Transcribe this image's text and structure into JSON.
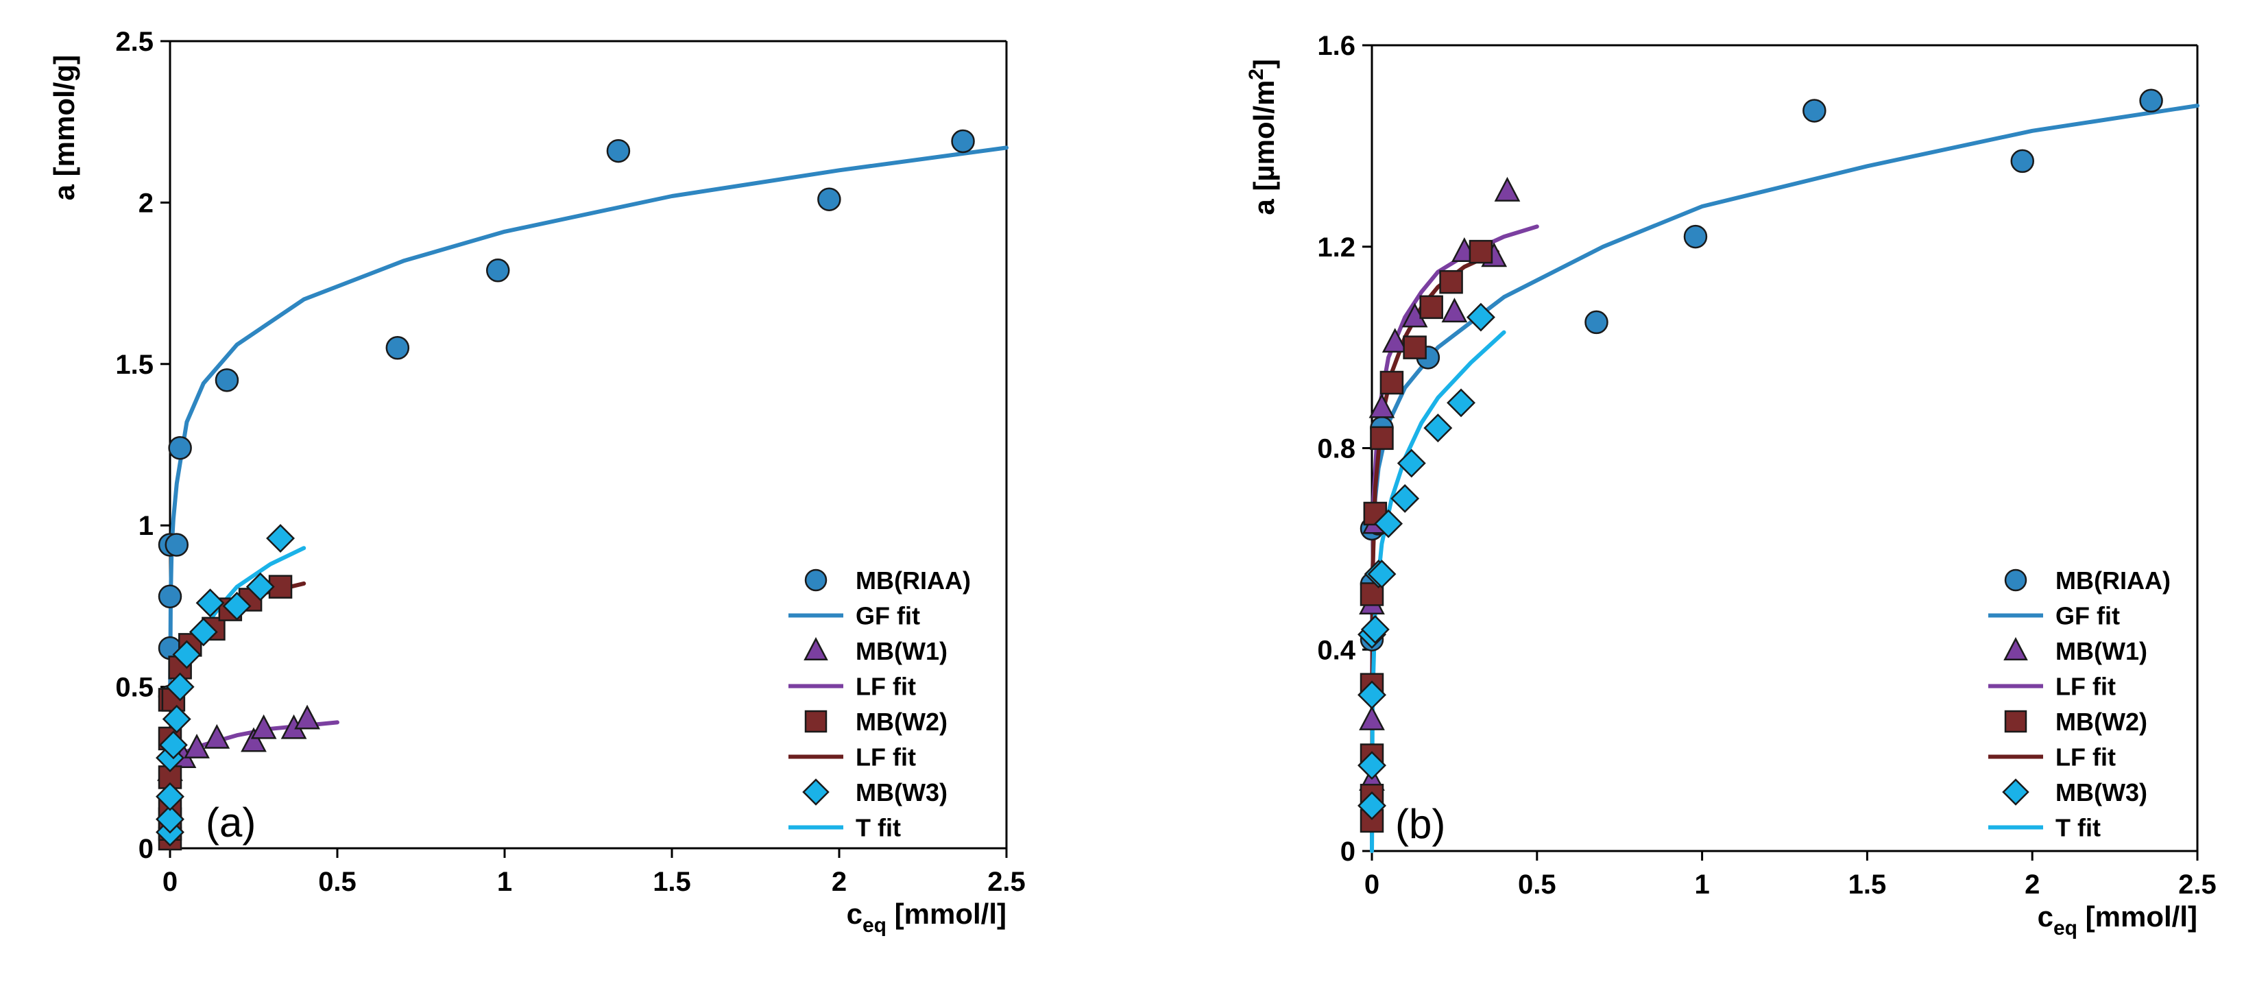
{
  "colors": {
    "riaa": "#2e86c1",
    "gf_fit": "#2e86c1",
    "w1": "#7b3fa0",
    "lf_fit_w1": "#7b3fa0",
    "w2": "#7b2a2a",
    "lf_fit_w2": "#6b1f1f",
    "w3": "#1ab2e8",
    "t_fit": "#1ab2e8",
    "marker_edge": "#1a1a1a",
    "axis": "#000000"
  },
  "chart_data": [
    {
      "type": "scatter",
      "panel_label": "(a)",
      "xlabel": {
        "main": "c",
        "sub": "eq",
        "rest": " [mmol/l]"
      },
      "ylabel": {
        "main": "a [mmol/g]",
        "sup": "",
        "rest": ""
      },
      "xlim": [
        0,
        2.5
      ],
      "ylim": [
        0,
        2.5
      ],
      "xticks": [
        "0",
        "0.5",
        "1",
        "1.5",
        "2",
        "2.5"
      ],
      "yticks": [
        "0",
        "0.5",
        "1",
        "1.5",
        "2",
        "2.5"
      ],
      "xtick_values": [
        0,
        0.5,
        1,
        1.5,
        2,
        2.5
      ],
      "ytick_values": [
        0,
        0.5,
        1,
        1.5,
        2,
        2.5
      ],
      "legend_position": "bottom-right",
      "series": [
        {
          "name": "MB(RIAA)",
          "marker": "circle",
          "color_key": "riaa",
          "x": [
            0.0,
            0.0,
            0.0,
            0.0,
            0.02,
            0.03,
            0.17,
            0.68,
            0.98,
            1.34,
            1.97,
            2.37
          ],
          "y": [
            0.47,
            0.62,
            0.78,
            0.94,
            0.94,
            1.24,
            1.45,
            1.55,
            1.79,
            2.16,
            2.01,
            2.19
          ]
        },
        {
          "name": "MB(W1)",
          "marker": "triangle",
          "color_key": "w1",
          "x": [
            0.0,
            0.04,
            0.08,
            0.14,
            0.25,
            0.28,
            0.37,
            0.41
          ],
          "y": [
            0.24,
            0.28,
            0.31,
            0.34,
            0.33,
            0.37,
            0.37,
            0.4
          ]
        },
        {
          "name": "MB(W2)",
          "marker": "square",
          "color_key": "w2",
          "x": [
            0.0,
            0.0,
            0.0,
            0.0,
            0.0,
            0.0,
            0.0,
            0.01,
            0.03,
            0.06,
            0.13,
            0.18,
            0.24,
            0.33
          ],
          "y": [
            0.03,
            0.06,
            0.09,
            0.13,
            0.22,
            0.34,
            0.46,
            0.46,
            0.56,
            0.63,
            0.68,
            0.74,
            0.77,
            0.81
          ]
        },
        {
          "name": "MB(W3)",
          "marker": "diamond",
          "color_key": "w3",
          "x": [
            0.0,
            0.0,
            0.0,
            0.0,
            0.01,
            0.02,
            0.03,
            0.05,
            0.1,
            0.12,
            0.2,
            0.27,
            0.33
          ],
          "y": [
            0.05,
            0.09,
            0.16,
            0.28,
            0.32,
            0.4,
            0.5,
            0.6,
            0.67,
            0.76,
            0.75,
            0.81,
            0.96
          ]
        },
        {
          "name": "GF fit",
          "line": true,
          "color_key": "gf_fit",
          "x": [
            0.0005,
            0.002,
            0.005,
            0.01,
            0.02,
            0.05,
            0.1,
            0.2,
            0.4,
            0.7,
            1.0,
            1.5,
            2.0,
            2.5
          ],
          "y": [
            0.48,
            0.78,
            0.93,
            1.02,
            1.13,
            1.32,
            1.44,
            1.56,
            1.7,
            1.82,
            1.91,
            2.02,
            2.1,
            2.17
          ]
        },
        {
          "name": "LF fit",
          "line": true,
          "color_key": "lf_fit_w1",
          "x": [
            0.0,
            0.005,
            0.02,
            0.05,
            0.1,
            0.2,
            0.3,
            0.4,
            0.5
          ],
          "y": [
            0.2,
            0.24,
            0.27,
            0.3,
            0.32,
            0.35,
            0.37,
            0.38,
            0.39
          ]
        },
        {
          "name": "LF fit",
          "line": true,
          "color_key": "lf_fit_w2",
          "x": [
            0.0,
            0.002,
            0.01,
            0.03,
            0.06,
            0.1,
            0.15,
            0.2,
            0.28,
            0.4
          ],
          "y": [
            0.0,
            0.3,
            0.45,
            0.55,
            0.61,
            0.66,
            0.71,
            0.75,
            0.79,
            0.82
          ]
        },
        {
          "name": "T fit",
          "line": true,
          "color_key": "t_fit",
          "x": [
            0.0,
            0.002,
            0.01,
            0.03,
            0.06,
            0.1,
            0.15,
            0.2,
            0.3,
            0.4
          ],
          "y": [
            0.0,
            0.22,
            0.38,
            0.52,
            0.6,
            0.68,
            0.75,
            0.81,
            0.88,
            0.93
          ]
        }
      ]
    },
    {
      "type": "scatter",
      "panel_label": "(b)",
      "xlabel": {
        "main": "c",
        "sub": "eq",
        "rest": " [mmol/l]"
      },
      "ylabel": {
        "main": "a [µmol/m",
        "sup": "2",
        "rest": "]"
      },
      "xlim": [
        0,
        2.5
      ],
      "ylim": [
        0,
        1.6
      ],
      "xticks": [
        "0",
        "0.5",
        "1",
        "1.5",
        "2",
        "2.5"
      ],
      "yticks": [
        "0",
        "0.4",
        "0.8",
        "1.2",
        "1.6"
      ],
      "xtick_values": [
        0,
        0.5,
        1,
        1.5,
        2,
        2.5
      ],
      "ytick_values": [
        0,
        0.4,
        0.8,
        1.2,
        1.6
      ],
      "legend_position": "bottom-right",
      "series": [
        {
          "name": "MB(RIAA)",
          "marker": "circle",
          "color_key": "riaa",
          "x": [
            0.0,
            0.0,
            0.0,
            0.02,
            0.03,
            0.17,
            0.68,
            0.98,
            1.34,
            1.97,
            2.36
          ],
          "y": [
            0.42,
            0.53,
            0.64,
            0.65,
            0.84,
            0.98,
            1.05,
            1.22,
            1.47,
            1.37,
            1.49
          ]
        },
        {
          "name": "MB(W1)",
          "marker": "triangle",
          "color_key": "w1",
          "x": [
            0.0,
            0.0,
            0.0,
            0.01,
            0.03,
            0.07,
            0.13,
            0.25,
            0.28,
            0.37,
            0.41
          ],
          "y": [
            0.14,
            0.26,
            0.49,
            0.65,
            0.88,
            1.01,
            1.06,
            1.07,
            1.19,
            1.18,
            1.31
          ]
        },
        {
          "name": "MB(W2)",
          "marker": "square",
          "color_key": "w2",
          "x": [
            0.0,
            0.0,
            0.0,
            0.0,
            0.0,
            0.01,
            0.03,
            0.06,
            0.13,
            0.18,
            0.24,
            0.33
          ],
          "y": [
            0.06,
            0.11,
            0.19,
            0.33,
            0.51,
            0.67,
            0.82,
            0.93,
            1.0,
            1.08,
            1.13,
            1.19
          ]
        },
        {
          "name": "MB(W3)",
          "marker": "diamond",
          "color_key": "w3",
          "x": [
            0.0,
            0.0,
            0.0,
            0.0,
            0.01,
            0.02,
            0.03,
            0.05,
            0.1,
            0.12,
            0.2,
            0.27,
            0.33
          ],
          "y": [
            0.09,
            0.17,
            0.31,
            0.43,
            0.44,
            0.55,
            0.55,
            0.65,
            0.7,
            0.77,
            0.84,
            0.89,
            1.06
          ]
        },
        {
          "name": "GF fit",
          "line": true,
          "color_key": "gf_fit",
          "x": [
            0.0005,
            0.002,
            0.005,
            0.01,
            0.02,
            0.05,
            0.1,
            0.2,
            0.4,
            0.7,
            1.0,
            1.5,
            2.0,
            2.5
          ],
          "y": [
            0.45,
            0.55,
            0.63,
            0.7,
            0.76,
            0.85,
            0.92,
            1.0,
            1.1,
            1.2,
            1.28,
            1.36,
            1.43,
            1.48
          ]
        },
        {
          "name": "LF fit",
          "line": true,
          "color_key": "lf_fit_w1",
          "x": [
            0.0,
            0.005,
            0.02,
            0.05,
            0.1,
            0.15,
            0.2,
            0.3,
            0.4,
            0.5
          ],
          "y": [
            0.3,
            0.7,
            0.87,
            0.98,
            1.06,
            1.11,
            1.15,
            1.19,
            1.22,
            1.24
          ]
        },
        {
          "name": "LF fit",
          "line": true,
          "color_key": "lf_fit_w2",
          "x": [
            0.0,
            0.002,
            0.01,
            0.03,
            0.06,
            0.1,
            0.15,
            0.2,
            0.28,
            0.38
          ],
          "y": [
            0.0,
            0.55,
            0.72,
            0.86,
            0.95,
            1.02,
            1.08,
            1.12,
            1.16,
            1.19
          ]
        },
        {
          "name": "T fit",
          "line": true,
          "color_key": "t_fit",
          "x": [
            0.0,
            0.002,
            0.01,
            0.03,
            0.06,
            0.1,
            0.15,
            0.2,
            0.3,
            0.4
          ],
          "y": [
            0.0,
            0.3,
            0.48,
            0.61,
            0.7,
            0.78,
            0.85,
            0.9,
            0.97,
            1.03
          ]
        }
      ]
    }
  ],
  "legend": [
    {
      "label": "MB(RIAA)",
      "kind": "marker",
      "marker": "circle",
      "color_key": "riaa"
    },
    {
      "label": "GF fit",
      "kind": "line",
      "color_key": "gf_fit"
    },
    {
      "label": "MB(W1)",
      "kind": "marker",
      "marker": "triangle",
      "color_key": "w1"
    },
    {
      "label": "LF fit",
      "kind": "line",
      "color_key": "lf_fit_w1"
    },
    {
      "label": "MB(W2)",
      "kind": "marker",
      "marker": "square",
      "color_key": "w2"
    },
    {
      "label": "LF fit",
      "kind": "line",
      "color_key": "lf_fit_w2"
    },
    {
      "label": "MB(W3)",
      "kind": "marker",
      "marker": "diamond",
      "color_key": "w3"
    },
    {
      "label": "T fit",
      "kind": "line",
      "color_key": "t_fit"
    }
  ]
}
